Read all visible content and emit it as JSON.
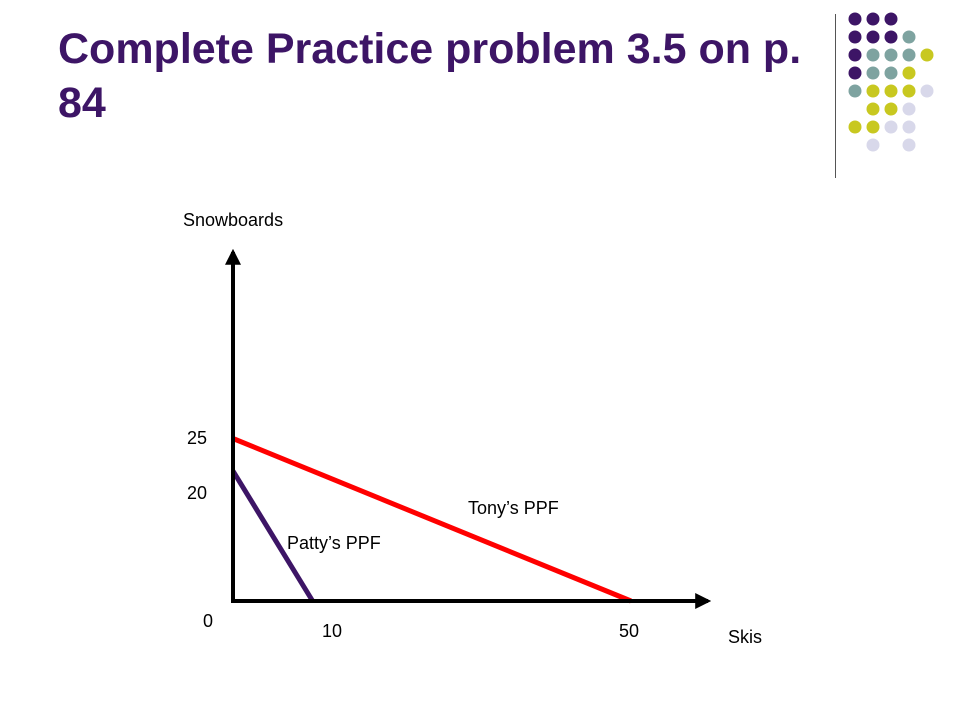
{
  "slide": {
    "title": "Complete Practice problem 3.5 on p. 84"
  },
  "decoration": {
    "dot_grid": [
      [
        "#3d1566",
        "#3d1566",
        "#3d1566",
        "",
        ""
      ],
      [
        "#3d1566",
        "#3d1566",
        "#3d1566",
        "#7ea3a0",
        ""
      ],
      [
        "#3d1566",
        "#7ea3a0",
        "#7ea3a0",
        "#7ea3a0",
        "#c8c820"
      ],
      [
        "#3d1566",
        "#7ea3a0",
        "#7ea3a0",
        "#c8c820",
        ""
      ],
      [
        "#7ea3a0",
        "#c8c820",
        "#c8c820",
        "#c8c820",
        "#d8d8ea"
      ],
      [
        "",
        "#c8c820",
        "#c8c820",
        "#d8d8ea",
        ""
      ],
      [
        "#c8c820",
        "#c8c820",
        "#d8d8ea",
        "#d8d8ea",
        ""
      ],
      [
        "",
        "#d8d8ea",
        "",
        "#d8d8ea",
        ""
      ]
    ]
  },
  "chart_data": {
    "type": "line",
    "title": "",
    "xlabel": "Skis",
    "ylabel": "Snowboards",
    "xlim": [
      0,
      60
    ],
    "ylim": [
      0,
      55
    ],
    "x_ticks": [
      "0",
      "10",
      "50"
    ],
    "y_ticks": [
      "25",
      "20"
    ],
    "axis_color": "#000000",
    "series": [
      {
        "name": "Patty’s PPF",
        "color": "#3d1566",
        "points": [
          [
            0,
            20
          ],
          [
            10,
            0
          ]
        ]
      },
      {
        "name": "Tony’s PPF",
        "color": "#ff0000",
        "points": [
          [
            0,
            25
          ],
          [
            50,
            0
          ]
        ]
      }
    ]
  }
}
